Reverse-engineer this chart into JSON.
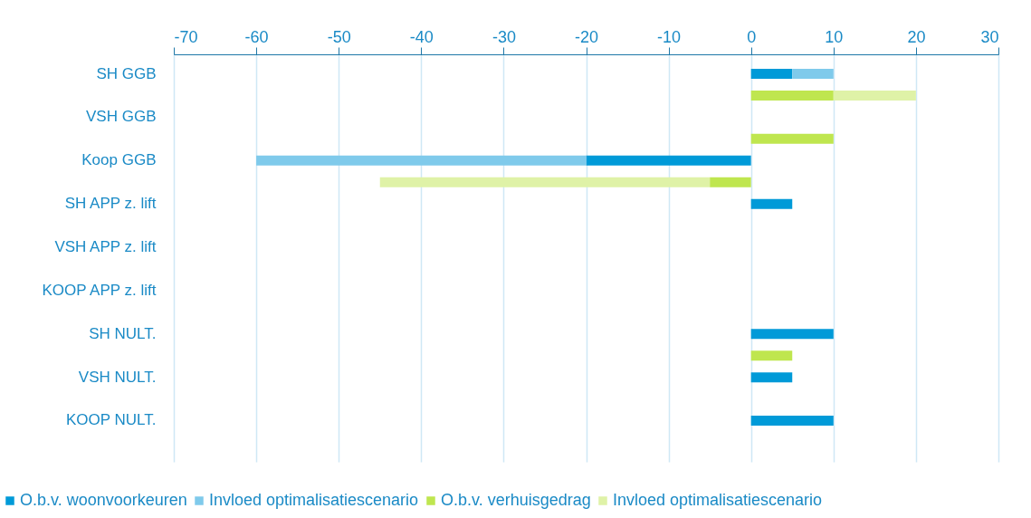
{
  "chart_data": {
    "type": "bar",
    "orientation": "horizontal",
    "categories": [
      "SH GGB",
      "VSH GGB",
      "Koop GGB",
      "SH APP z. lift",
      "VSH APP z. lift",
      "KOOP APP z. lift",
      "SH NULT.",
      "VSH NULT.",
      "KOOP NULT."
    ],
    "series": [
      {
        "name": "O.b.v. woonvoorkeuren",
        "color": "#009ad8",
        "values": [
          5,
          null,
          -20,
          5,
          null,
          null,
          10,
          5,
          10
        ]
      },
      {
        "name": "Invloed optimalisatiescenario",
        "color": "#7fcaeb",
        "values": [
          5,
          null,
          -40,
          null,
          null,
          null,
          null,
          null,
          null
        ],
        "base": [
          5,
          null,
          -20,
          null,
          null,
          null,
          null,
          null,
          null
        ]
      },
      {
        "name": "O.b.v. verhuisgedrag",
        "color": "#bfe64f",
        "values": [
          10,
          10,
          -5,
          null,
          null,
          null,
          5,
          null,
          null
        ]
      },
      {
        "name": "Invloed optimalisatiescenario",
        "color": "#dff2a7",
        "values": [
          10,
          null,
          -40,
          null,
          null,
          null,
          null,
          null,
          null
        ],
        "base": [
          10,
          null,
          -5,
          null,
          null,
          null,
          null,
          null,
          null
        ]
      }
    ],
    "xlim": [
      -70,
      30
    ],
    "xticks": [
      -70,
      -60,
      -50,
      -40,
      -30,
      -20,
      -10,
      0,
      10,
      20,
      30
    ],
    "grid": "x",
    "legend": "bottom"
  }
}
